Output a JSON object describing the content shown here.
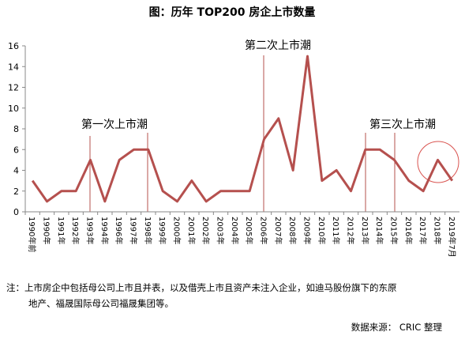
{
  "chart_data": {
    "type": "line",
    "title": "图：历年 TOP200 房企上市数量",
    "categories": [
      "1990年前",
      "1990年",
      "1991年",
      "1992年",
      "1993年",
      "1994年",
      "1996年",
      "1997年",
      "1998年",
      "1999年",
      "2000年",
      "2001年",
      "2002年",
      "2003年",
      "2004年",
      "2005年",
      "2006年",
      "2007年",
      "2008年",
      "2009年",
      "2010年",
      "2011年",
      "2012年",
      "2013年",
      "2014年",
      "2015年",
      "2016年",
      "2017年",
      "2018年",
      "2019年7月"
    ],
    "values": [
      3,
      1,
      2,
      2,
      5,
      1,
      5,
      6,
      6,
      2,
      1,
      3,
      1,
      2,
      2,
      2,
      7,
      9,
      4,
      15,
      3,
      4,
      2,
      6,
      6,
      5,
      3,
      2,
      5,
      3
    ],
    "color": "#b5504e",
    "ylim": [
      0,
      16
    ],
    "yticks": [
      0,
      2,
      4,
      6,
      8,
      10,
      12,
      14,
      16
    ],
    "annotations": [
      "第一次上市潮",
      "第二次上市潮",
      "第三次上市潮"
    ],
    "note": [
      "注：上市房企中包括母公司上市且并表，以及借壳上市且资产未注入企业，如迪马股份旗下的东原",
      "地产、福晟国际母公司福晟集团等。"
    ],
    "source": "数据来源： CRIC 整理"
  }
}
